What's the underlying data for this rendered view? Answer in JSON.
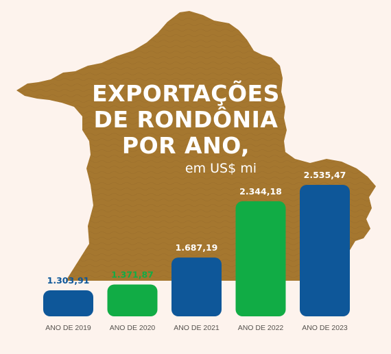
{
  "colors": {
    "background": "#fdf3ed",
    "map": "#a5772f",
    "blue": "#0e5799",
    "green": "#11ac45",
    "label": "#55514d"
  },
  "title": {
    "line1": "EXPORTAÇÕES",
    "line2": "DE RONDÔNIA",
    "line3": "POR ANO,",
    "subtitle": "em US$ mi"
  },
  "chart_data": {
    "type": "bar",
    "title": "EXPORTAÇÕES DE RONDÔNIA POR ANO, em US$ mi",
    "categories": [
      "ANO DE 2019",
      "ANO DE 2020",
      "ANO DE 2021",
      "ANO DE 2022",
      "ANO DE 2023"
    ],
    "values": [
      1303.91,
      1371.87,
      1687.19,
      2344.18,
      2535.47
    ],
    "value_labels": [
      "1.303,91",
      "1.371,87",
      "1.687,19",
      "2.344,18",
      "2.535,47"
    ],
    "bar_colors": [
      "#0e5799",
      "#11ac45",
      "#0e5799",
      "#11ac45",
      "#0e5799"
    ],
    "label_colors": [
      "#0e5799",
      "#11ac45",
      "#ffffff",
      "#ffffff",
      "#ffffff"
    ],
    "xlabel": "",
    "ylabel": "",
    "ylim": [
      1000,
      2700
    ],
    "grid": false,
    "legend": "none"
  }
}
